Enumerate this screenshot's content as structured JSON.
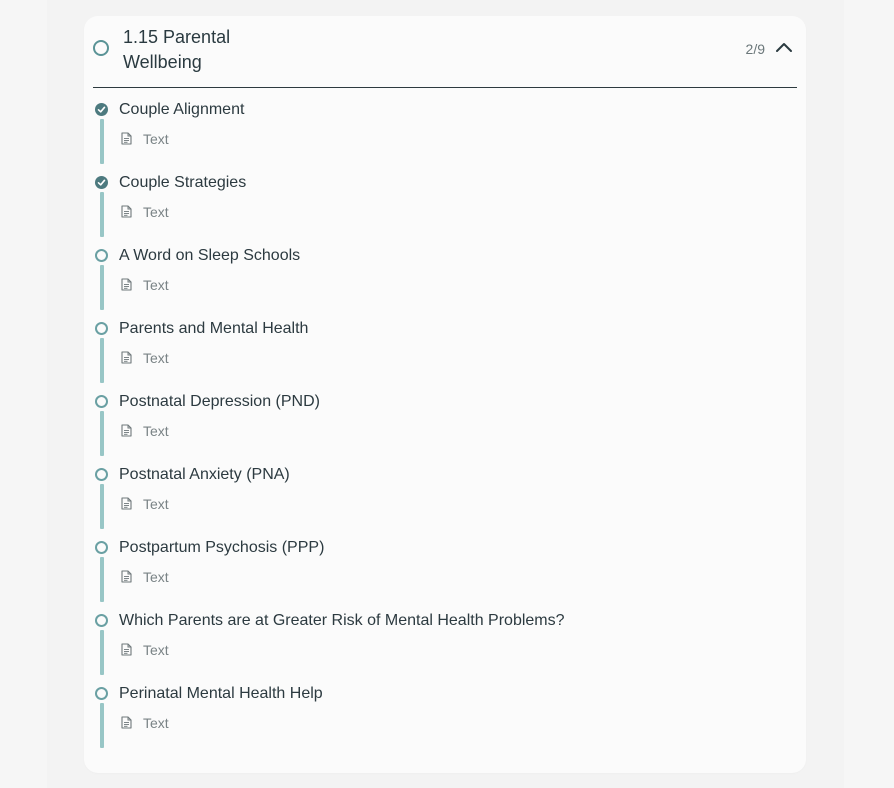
{
  "module": {
    "title": "1.15 Parental Wellbeing",
    "progress": "2/9",
    "expanded": true
  },
  "lessons": [
    {
      "title": "Couple Alignment",
      "type": "Text",
      "completed": true
    },
    {
      "title": "Couple Strategies",
      "type": "Text",
      "completed": true
    },
    {
      "title": "A Word on Sleep Schools",
      "type": "Text",
      "completed": false
    },
    {
      "title": "Parents and Mental Health",
      "type": "Text",
      "completed": false
    },
    {
      "title": "Postnatal Depression (PND)",
      "type": "Text",
      "completed": false
    },
    {
      "title": "Postnatal Anxiety (PNA)",
      "type": "Text",
      "completed": false
    },
    {
      "title": "Postpartum Psychosis (PPP)",
      "type": "Text",
      "completed": false
    },
    {
      "title": "Which Parents are at Greater Risk of Mental Health Problems?",
      "type": "Text",
      "completed": false
    },
    {
      "title": "Perinatal Mental Health Help",
      "type": "Text",
      "completed": false
    }
  ],
  "colors": {
    "accent": "#5a9396",
    "rail": "#98c6c6",
    "done": "#4d7a7f"
  }
}
